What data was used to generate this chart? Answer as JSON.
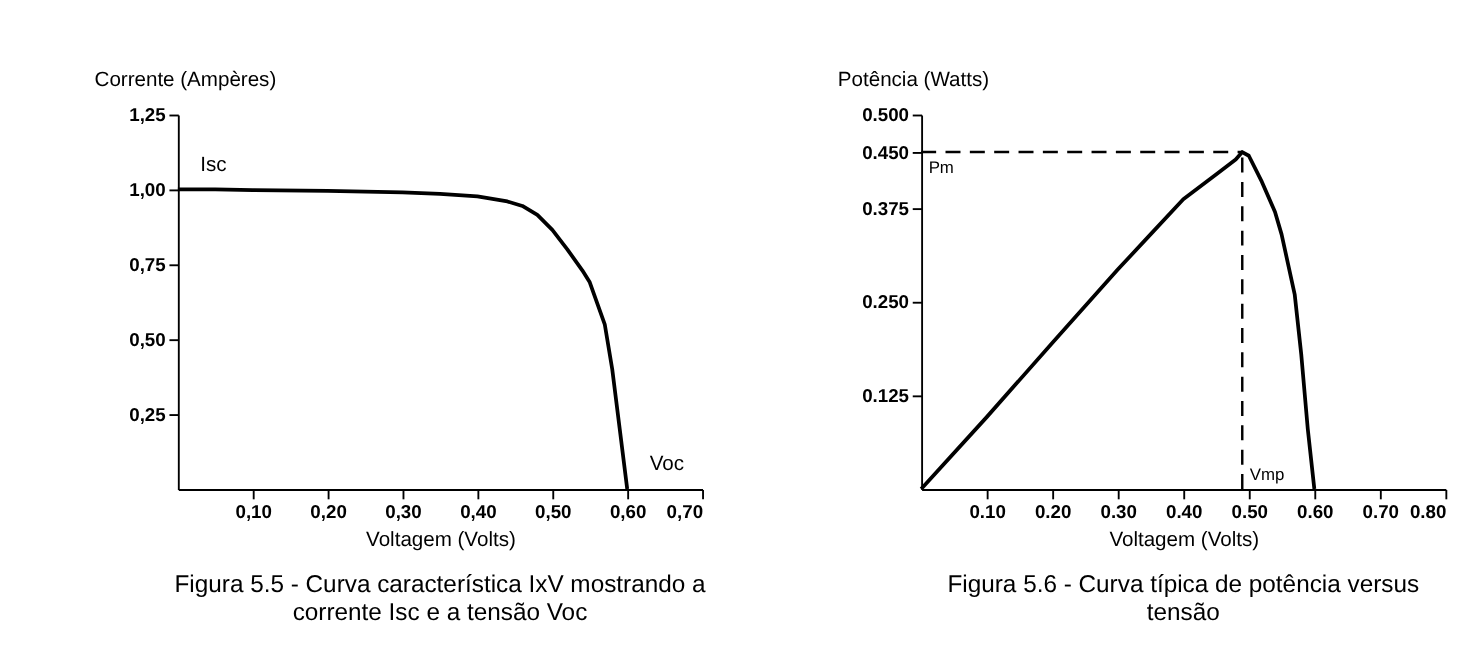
{
  "chart_data": [
    {
      "type": "line",
      "ylabel": "Corrente (Ampères)",
      "xlabel": "Voltagem (Volts)",
      "x": [
        0,
        0.05,
        0.1,
        0.2,
        0.3,
        0.35,
        0.4,
        0.44,
        0.46,
        0.48,
        0.5,
        0.52,
        0.54,
        0.55,
        0.56,
        0.57,
        0.58,
        0.59,
        0.6
      ],
      "series": [
        {
          "color": "#000000",
          "values": [
            1.0,
            1.0,
            0.998,
            0.995,
            0.99,
            0.985,
            0.977,
            0.96,
            0.945,
            0.915,
            0.865,
            0.8,
            0.73,
            0.69,
            0.62,
            0.55,
            0.4,
            0.2,
            0.0
          ]
        }
      ],
      "xlim": [
        0,
        0.7
      ],
      "ylim": [
        0,
        1.25
      ],
      "xticks": [
        {
          "value": 0.1,
          "label": "0,10"
        },
        {
          "value": 0.2,
          "label": "0,20"
        },
        {
          "value": 0.3,
          "label": "0,30"
        },
        {
          "value": 0.4,
          "label": "0,40"
        },
        {
          "value": 0.5,
          "label": "0,50"
        },
        {
          "value": 0.6,
          "label": "0,60"
        },
        {
          "value": 0.7,
          "label": "0,70"
        }
      ],
      "yticks": [
        {
          "value": 0.25,
          "label": "0,25"
        },
        {
          "value": 0.5,
          "label": "0,50"
        },
        {
          "value": 0.75,
          "label": "0,75"
        },
        {
          "value": 1.0,
          "label": "1,00"
        },
        {
          "value": 1.25,
          "label": "1,25"
        }
      ],
      "grid": false,
      "line_style": "solid",
      "annotations": [
        {
          "text": "Isc",
          "x": 0,
          "y": 1.0
        },
        {
          "text": "Voc",
          "x": 0.6,
          "y": 0
        },
        "Figura 5.5 - Curva característica IxV mostrando a\ncorrente Isc e a tensão Voc"
      ]
    },
    {
      "type": "line",
      "ylabel": "Potência (Watts)",
      "xlabel": "Voltagem (Volts)",
      "x": [
        0,
        0.1,
        0.2,
        0.3,
        0.35,
        0.4,
        0.45,
        0.48,
        0.49,
        0.5,
        0.52,
        0.54,
        0.55,
        0.56,
        0.57,
        0.58,
        0.59,
        0.6
      ],
      "series": [
        {
          "color": "#000000",
          "values": [
            0,
            0.096,
            0.195,
            0.293,
            0.34,
            0.387,
            0.42,
            0.44,
            0.45,
            0.445,
            0.41,
            0.37,
            0.34,
            0.3,
            0.26,
            0.18,
            0.08,
            0.0
          ]
        }
      ],
      "xlim": [
        0,
        0.8
      ],
      "ylim": [
        0,
        0.5
      ],
      "xticks": [
        {
          "value": 0.1,
          "label": "0.10"
        },
        {
          "value": 0.2,
          "label": "0.20"
        },
        {
          "value": 0.3,
          "label": "0.30"
        },
        {
          "value": 0.4,
          "label": "0.40"
        },
        {
          "value": 0.5,
          "label": "0.50"
        },
        {
          "value": 0.6,
          "label": "0.60"
        },
        {
          "value": 0.7,
          "label": "0.70"
        },
        {
          "value": 0.8,
          "label": "0.80"
        }
      ],
      "yticks": [
        {
          "value": 0.125,
          "label": "0.125"
        },
        {
          "value": 0.25,
          "label": "0.250"
        },
        {
          "value": 0.375,
          "label": "0.375"
        },
        {
          "value": 0.45,
          "label": "0.450"
        },
        {
          "value": 0.5,
          "label": "0.500"
        }
      ],
      "grid": false,
      "line_style": "solid",
      "ref_lines": [
        {
          "axis": "y",
          "value": 0.45,
          "label": "Pm",
          "line_style": "dashed",
          "color": "#000000"
        },
        {
          "axis": "x",
          "value": 0.49,
          "label": "Vmp",
          "line_style": "dashed",
          "color": "#000000"
        }
      ],
      "annotations": [
        "Figura 5.6 - Curva típica de potência versus\ntensão"
      ]
    }
  ]
}
